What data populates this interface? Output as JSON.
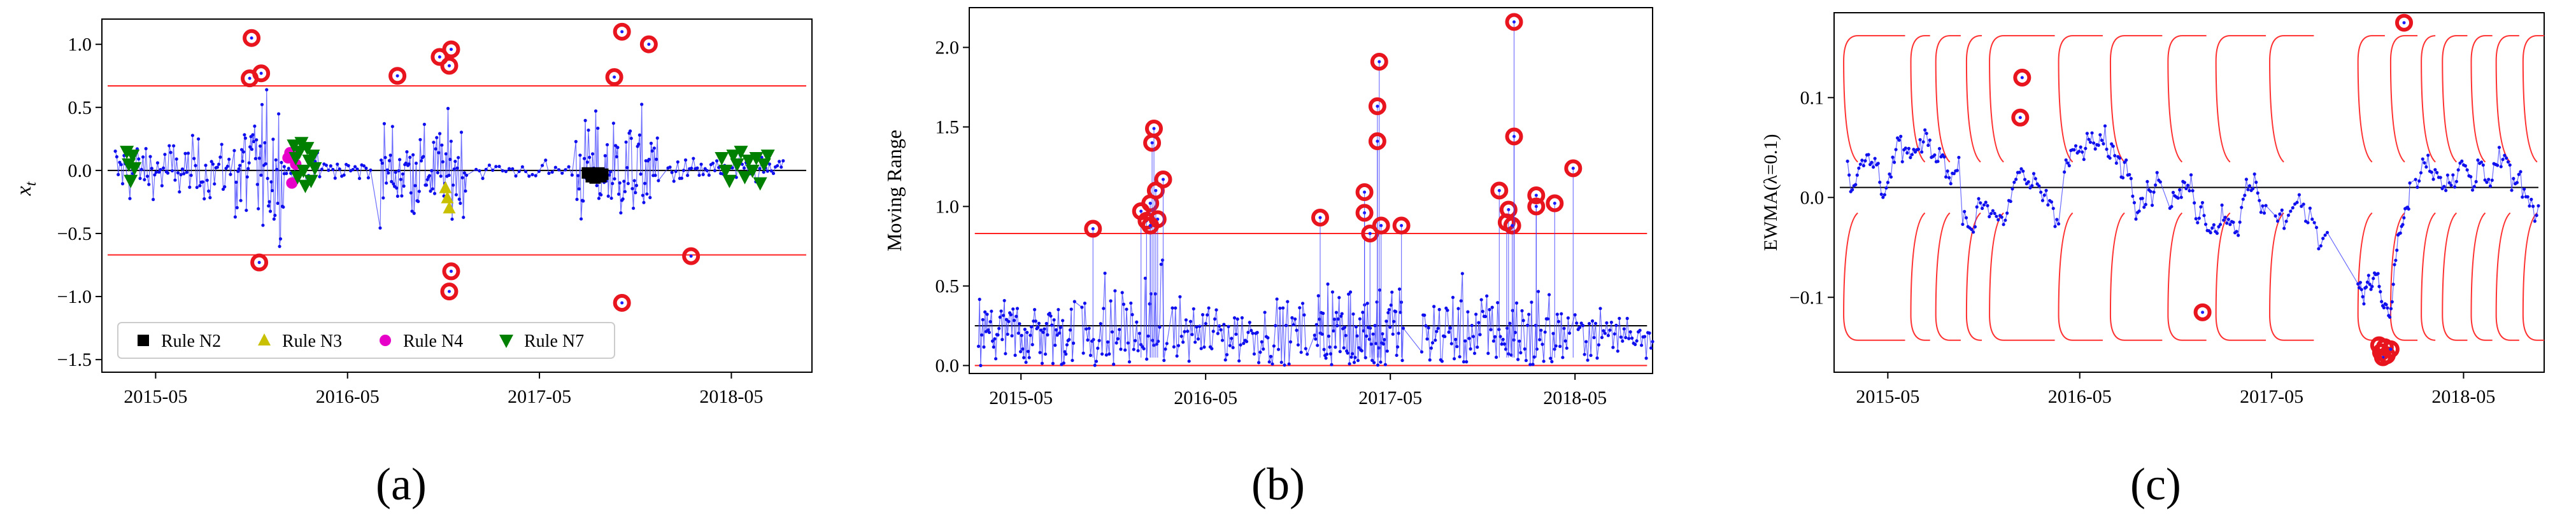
{
  "chart_data": [
    {
      "type": "scatter",
      "panel_label": "(a)",
      "ylabel": "x_t",
      "ylabel_italic_x": "x",
      "ylabel_sub": "t",
      "ylim": [
        -1.6,
        1.2
      ],
      "yticks": [
        -1.5,
        -1.0,
        -0.5,
        0.0,
        0.5,
        1.0
      ],
      "ytick_labels": [
        "−1.5",
        "−1.0",
        "−0.5",
        "0.0",
        "0.5",
        "1.0"
      ],
      "xticks": [
        "2015-05",
        "2016-05",
        "2017-05",
        "2018-05"
      ],
      "xtick_pos": [
        2015.33,
        2016.33,
        2017.33,
        2018.33
      ],
      "xlim": [
        2015.05,
        2018.75
      ],
      "center_line": 0.0,
      "ucl": 0.67,
      "lcl": -0.67,
      "legend": [
        "Rule N2",
        "Rule N3",
        "Rule N4",
        "Rule N7"
      ],
      "legend_location": "lower-left",
      "series": [
        {
          "name": "Rule N2",
          "color": "#000000",
          "marker": "square",
          "points": [
            [
              2017.58,
              -0.02
            ],
            [
              2017.6,
              -0.05
            ],
            [
              2017.61,
              -0.03
            ],
            [
              2017.62,
              -0.06
            ],
            [
              2017.63,
              -0.04
            ],
            [
              2017.64,
              -0.02
            ],
            [
              2017.65,
              -0.05
            ],
            [
              2017.66,
              -0.03
            ]
          ]
        },
        {
          "name": "Rule N3",
          "color": "#c8c000",
          "marker": "triangle-up",
          "points": [
            [
              2016.84,
              -0.14
            ],
            [
              2016.85,
              -0.22
            ],
            [
              2016.86,
              -0.3
            ]
          ]
        },
        {
          "name": "Rule N4",
          "color": "#e600c8",
          "marker": "hexagon",
          "points": [
            [
              2016.02,
              0.1
            ],
            [
              2016.03,
              0.14
            ],
            [
              2016.04,
              -0.1
            ],
            [
              2016.05,
              0.12
            ],
            [
              2016.06,
              0.05
            ]
          ]
        },
        {
          "name": "Rule N7",
          "color": "#008000",
          "marker": "triangle-down",
          "points": [
            [
              2015.18,
              0.15
            ],
            [
              2015.19,
              0.05
            ],
            [
              2015.2,
              -0.08
            ],
            [
              2015.21,
              0.12
            ],
            [
              2015.22,
              0.02
            ],
            [
              2016.05,
              0.2
            ],
            [
              2016.06,
              0.1
            ],
            [
              2016.07,
              -0.05
            ],
            [
              2016.08,
              0.15
            ],
            [
              2016.09,
              0.22
            ],
            [
              2016.1,
              0.0
            ],
            [
              2016.11,
              -0.12
            ],
            [
              2016.12,
              0.18
            ],
            [
              2016.13,
              0.08
            ],
            [
              2016.14,
              -0.08
            ],
            [
              2016.15,
              0.12
            ],
            [
              2016.16,
              0.02
            ],
            [
              2018.28,
              0.1
            ],
            [
              2018.3,
              0.0
            ],
            [
              2018.32,
              -0.08
            ],
            [
              2018.34,
              0.12
            ],
            [
              2018.36,
              0.05
            ],
            [
              2018.38,
              0.15
            ],
            [
              2018.4,
              -0.05
            ],
            [
              2018.42,
              0.08
            ],
            [
              2018.44,
              0.0
            ],
            [
              2018.46,
              0.1
            ],
            [
              2018.48,
              -0.1
            ],
            [
              2018.5,
              0.05
            ],
            [
              2018.52,
              0.12
            ]
          ]
        }
      ],
      "out_of_control": [
        [
          2015.83,
          1.05
        ],
        [
          2015.82,
          0.73
        ],
        [
          2015.88,
          0.77
        ],
        [
          2015.87,
          -0.73
        ],
        [
          2016.59,
          0.75
        ],
        [
          2016.81,
          0.9
        ],
        [
          2016.87,
          0.96
        ],
        [
          2016.86,
          0.83
        ],
        [
          2016.87,
          -0.8
        ],
        [
          2016.86,
          -0.96
        ],
        [
          2017.72,
          0.74
        ],
        [
          2017.76,
          1.1
        ],
        [
          2017.9,
          1.0
        ],
        [
          2017.76,
          -1.05
        ],
        [
          2018.12,
          -0.68
        ]
      ]
    },
    {
      "type": "line",
      "panel_label": "(b)",
      "ylabel": "Moving Range",
      "ylim": [
        -0.05,
        2.25
      ],
      "yticks": [
        0.0,
        0.5,
        1.0,
        1.5,
        2.0
      ],
      "ytick_labels": [
        "0.0",
        "0.5",
        "1.0",
        "1.5",
        "2.0"
      ],
      "xticks": [
        "2015-05",
        "2016-05",
        "2017-05",
        "2018-05"
      ],
      "xtick_pos": [
        2015.33,
        2016.33,
        2017.33,
        2018.33
      ],
      "xlim": [
        2015.05,
        2018.75
      ],
      "center_line": 0.25,
      "ucl": 0.83,
      "lcl": 0.0,
      "out_of_control": [
        [
          2015.72,
          0.86
        ],
        [
          2015.98,
          0.97
        ],
        [
          2016.01,
          0.91
        ],
        [
          2016.03,
          1.02
        ],
        [
          2016.04,
          1.4
        ],
        [
          2016.05,
          1.49
        ],
        [
          2016.06,
          1.1
        ],
        [
          2016.07,
          0.92
        ],
        [
          2016.1,
          1.17
        ],
        [
          2016.03,
          0.88
        ],
        [
          2016.95,
          0.93
        ],
        [
          2017.19,
          1.09
        ],
        [
          2017.19,
          0.96
        ],
        [
          2017.22,
          0.83
        ],
        [
          2017.27,
          1.91
        ],
        [
          2017.26,
          1.63
        ],
        [
          2017.26,
          1.41
        ],
        [
          2017.28,
          0.88
        ],
        [
          2017.39,
          0.88
        ],
        [
          2017.92,
          1.1
        ],
        [
          2017.96,
          0.9
        ],
        [
          2017.97,
          0.98
        ],
        [
          2017.99,
          0.88
        ],
        [
          2018.0,
          2.16
        ],
        [
          2018.0,
          1.44
        ],
        [
          2018.12,
          1.07
        ],
        [
          2018.12,
          1.0
        ],
        [
          2018.22,
          1.02
        ],
        [
          2018.32,
          1.24
        ]
      ]
    },
    {
      "type": "line",
      "panel_label": "(c)",
      "ylabel": "EWMA(λ=0.1)",
      "ylim": [
        -0.175,
        0.185
      ],
      "yticks": [
        -0.1,
        0.0,
        0.1
      ],
      "ytick_labels": [
        "−0.1",
        "0.0",
        "0.1"
      ],
      "xticks": [
        "2015-05",
        "2016-05",
        "2017-05",
        "2018-05"
      ],
      "xtick_pos": [
        2015.33,
        2016.33,
        2017.33,
        2018.33
      ],
      "xlim": [
        2015.05,
        2018.75
      ],
      "center_line": 0.01,
      "ucl": 0.162,
      "lcl": -0.143,
      "limit_segments": [
        [
          2015.1,
          2015.42
        ],
        [
          2015.45,
          2015.55
        ],
        [
          2015.58,
          2015.71
        ],
        [
          2015.74,
          2015.82
        ],
        [
          2015.86,
          2016.2
        ],
        [
          2016.22,
          2016.45
        ],
        [
          2016.49,
          2016.76
        ],
        [
          2016.79,
          2016.99
        ],
        [
          2017.04,
          2017.3
        ],
        [
          2017.32,
          2017.55
        ],
        [
          2017.78,
          2017.92
        ],
        [
          2017.95,
          2018.09
        ],
        [
          2018.11,
          2018.18
        ],
        [
          2018.22,
          2018.35
        ],
        [
          2018.37,
          2018.48
        ],
        [
          2018.5,
          2018.62
        ],
        [
          2018.64,
          2018.75
        ]
      ],
      "out_of_control": [
        [
          2016.03,
          0.12
        ],
        [
          2016.02,
          0.08
        ],
        [
          2016.97,
          -0.115
        ],
        [
          2017.89,
          -0.148
        ],
        [
          2017.9,
          -0.155
        ],
        [
          2017.91,
          -0.16
        ],
        [
          2017.92,
          -0.15
        ],
        [
          2017.93,
          -0.158
        ],
        [
          2017.95,
          -0.152
        ],
        [
          2018.02,
          0.175
        ]
      ]
    }
  ]
}
